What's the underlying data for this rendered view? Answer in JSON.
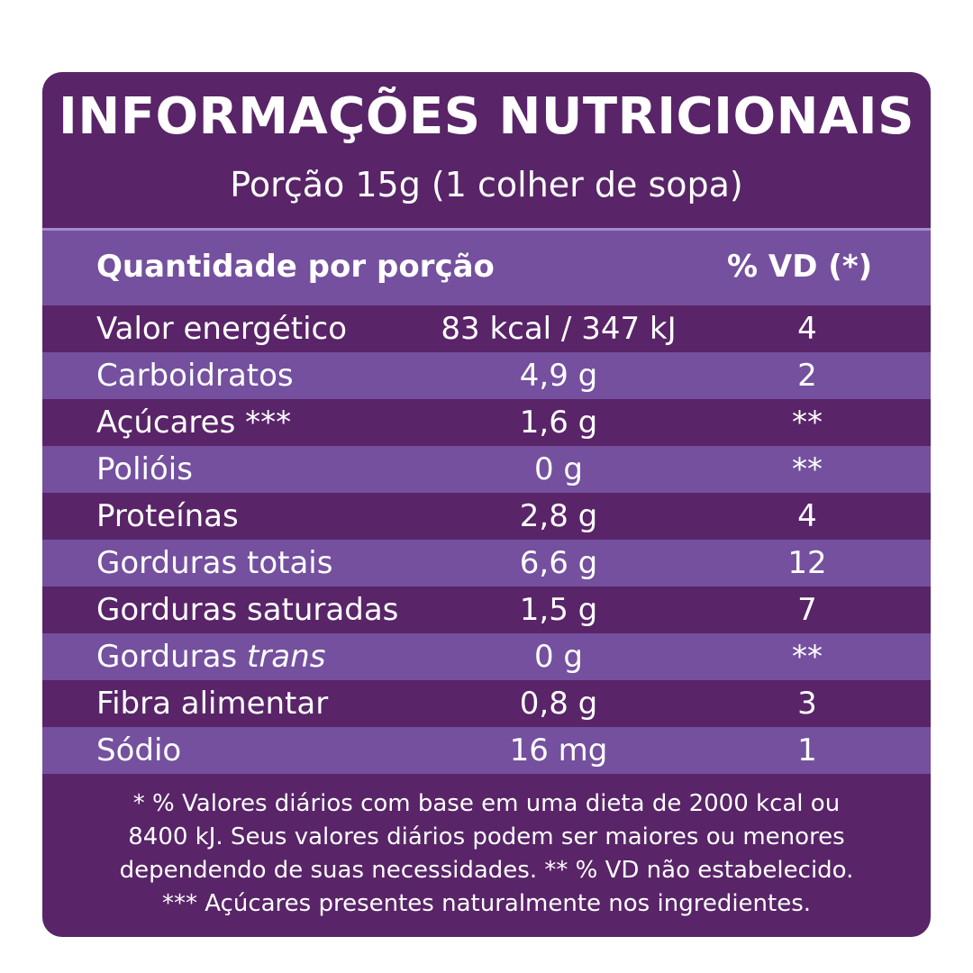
{
  "title": "INFORMAÇÕES NUTRICIONAIS",
  "serving": "Porção 15g (1 colher de sopa)",
  "header": {
    "quantity_label": "Quantidade por porção",
    "vd_label": "% VD (*)"
  },
  "rows": [
    {
      "name": "Valor energético",
      "amount": "83 kcal / 347 kJ",
      "vd": "4"
    },
    {
      "name": "Carboidratos",
      "amount": "4,9 g",
      "vd": "2"
    },
    {
      "name": "Açúcares ***",
      "amount": "1,6 g",
      "vd": "**"
    },
    {
      "name": "Polióis",
      "amount": "0 g",
      "vd": "**"
    },
    {
      "name": "Proteínas",
      "amount": "2,8 g",
      "vd": "4"
    },
    {
      "name": "Gorduras totais",
      "amount": "6,6 g",
      "vd": "12"
    },
    {
      "name": "Gorduras saturadas",
      "amount": "1,5 g",
      "vd": "7"
    },
    {
      "name": "Gorduras",
      "name_italic": "trans",
      "amount": "0 g",
      "vd": "**"
    },
    {
      "name": "Fibra alimentar",
      "amount": "0,8 g",
      "vd": "3"
    },
    {
      "name": "Sódio",
      "amount": "16 mg",
      "vd": "1"
    }
  ],
  "footnote": [
    "* % Valores diários com base em uma dieta de 2000 kcal ou",
    "8400 kJ. Seus valores diários podem ser maiores ou menores",
    "dependendo de suas necessidades. ** % VD não estabelecido.",
    "*** Açúcares presentes naturalmente nos ingredientes."
  ],
  "colors": {
    "panel": "#592468",
    "row_light": "#74509f",
    "text": "#ffffff"
  }
}
